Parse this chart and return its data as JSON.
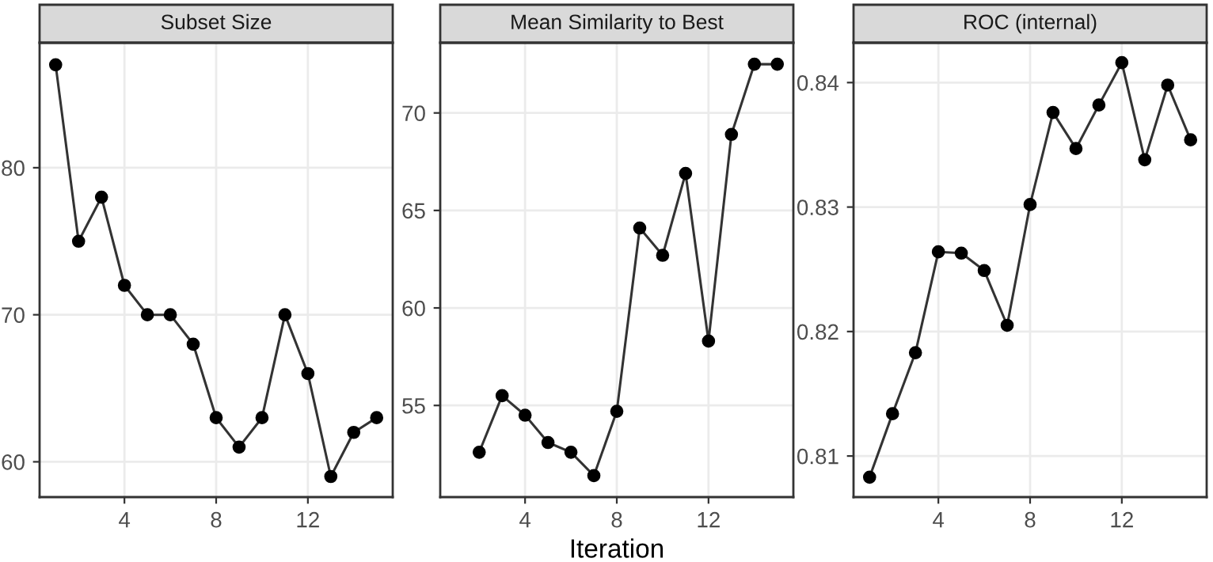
{
  "chart_data": [
    {
      "type": "line",
      "title": "Subset Size",
      "x": [
        1,
        2,
        3,
        4,
        5,
        6,
        7,
        8,
        9,
        10,
        11,
        12,
        13,
        14,
        15
      ],
      "series": [
        {
          "color": "#333333",
          "values": [
            87,
            75,
            78,
            72,
            70,
            70,
            68,
            63,
            61,
            63,
            70,
            66,
            59,
            62,
            63
          ]
        }
      ],
      "marker": "circle",
      "grid": true,
      "xlim": [
        0.3,
        15.7
      ],
      "xticks": [
        4,
        8,
        12
      ],
      "ylim": [
        57.6,
        88.5
      ],
      "yticks": [
        60,
        70,
        80
      ]
    },
    {
      "type": "line",
      "title": "Mean Similarity to Best",
      "xlabel": "Iteration",
      "x": [
        2,
        3,
        4,
        5,
        6,
        7,
        8,
        9,
        10,
        11,
        12,
        13,
        14,
        15
      ],
      "series": [
        {
          "color": "#333333",
          "values": [
            52.6,
            55.5,
            54.5,
            53.1,
            52.6,
            51.4,
            54.7,
            64.1,
            62.7,
            66.9,
            58.3,
            68.9,
            72.5,
            72.5
          ]
        }
      ],
      "marker": "circle",
      "grid": true,
      "xlim": [
        0.3,
        15.7
      ],
      "xticks": [
        4,
        8,
        12
      ],
      "ylim": [
        50.3,
        73.6
      ],
      "yticks": [
        55,
        60,
        65,
        70
      ]
    },
    {
      "type": "line",
      "title": "ROC (internal)",
      "x": [
        1,
        2,
        3,
        4,
        5,
        6,
        7,
        8,
        9,
        10,
        11,
        12,
        13,
        14,
        15
      ],
      "series": [
        {
          "color": "#333333",
          "values": [
            0.8083,
            0.8134,
            0.8183,
            0.8264,
            0.8263,
            0.8249,
            0.8205,
            0.8302,
            0.8376,
            0.8347,
            0.8382,
            0.8416,
            0.8338,
            0.8398,
            0.8354
          ]
        }
      ],
      "marker": "circle",
      "grid": true,
      "xlim": [
        0.3,
        15.7
      ],
      "xticks": [
        4,
        8,
        12
      ],
      "ylim": [
        0.8067,
        0.8432
      ],
      "yticks": [
        0.81,
        0.82,
        0.83,
        0.84
      ]
    }
  ]
}
